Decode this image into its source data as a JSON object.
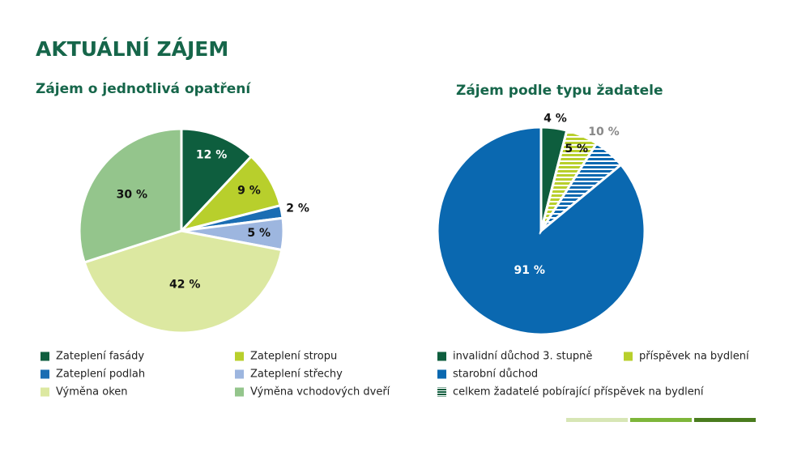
{
  "slide_title": "AKTUÁLNÍ ZÁJEM",
  "chart_data": [
    {
      "type": "pie",
      "title": "Zájem o jednotlivá opatření",
      "categories": [
        "Zateplení fasády",
        "Zateplení stropu",
        "Zateplení podlah",
        "Zateplení střechy",
        "Výměna oken",
        "Výměna vchodových dveří"
      ],
      "values": [
        12,
        9,
        2,
        5,
        42,
        30
      ],
      "value_labels": [
        "12 %",
        "9 %",
        "2 %",
        "5 %",
        "42 %",
        "30 %"
      ],
      "colors": [
        "#0e5e3e",
        "#b8cf2c",
        "#1a6db3",
        "#9db6df",
        "#dce8a1",
        "#94c58c"
      ]
    },
    {
      "type": "pie",
      "title": "Zájem podle typu žadatele",
      "categories": [
        "invalidní důchod 3. stupně",
        "příspěvek na bydlení",
        "starobní důchod",
        "celkem žadatelé pobírající příspěvek na bydlení"
      ],
      "values": [
        4,
        5,
        91,
        10
      ],
      "value_labels": [
        "4 %",
        "5 %",
        "91 %",
        "10 %"
      ],
      "colors": [
        "#0e5e3e",
        "#b8cf2c",
        "#0a68b0",
        "#0e5e3e"
      ],
      "hatched": [
        false,
        false,
        false,
        true
      ]
    }
  ]
}
